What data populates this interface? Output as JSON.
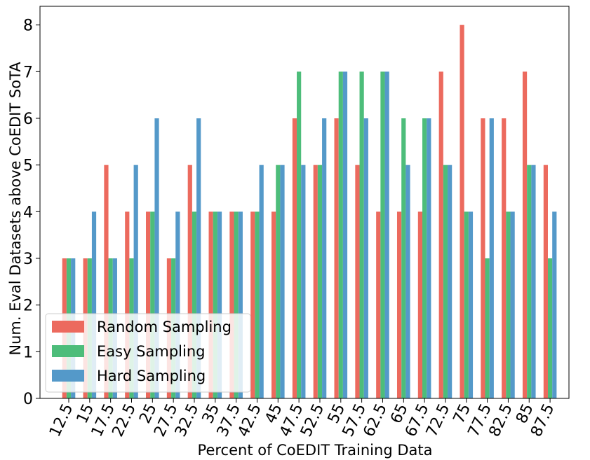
{
  "chart_data": {
    "type": "bar",
    "title": "",
    "xlabel": "Percent of CoEDIT Training Data",
    "ylabel": "Num. Eval Datasets above CoEDIT SoTA",
    "ylim": [
      0,
      8.4
    ],
    "yticks": [
      "0",
      "1",
      "2",
      "3",
      "4",
      "5",
      "6",
      "7",
      "8"
    ],
    "categories": [
      "12.5",
      "15",
      "17.5",
      "22.5",
      "25",
      "27.5",
      "32.5",
      "35",
      "37.5",
      "42.5",
      "45",
      "47.5",
      "52.5",
      "55",
      "57.5",
      "62.5",
      "65",
      "67.5",
      "72.5",
      "75",
      "77.5",
      "82.5",
      "85",
      "87.5"
    ],
    "series": [
      {
        "name": "Random Sampling",
        "color": "#ec6a5e",
        "values": [
          3,
          3,
          5,
          4,
          4,
          3,
          5,
          4,
          4,
          4,
          4,
          6,
          5,
          6,
          5,
          4,
          4,
          4,
          7,
          8,
          6,
          6,
          7,
          5
        ]
      },
      {
        "name": "Easy Sampling",
        "color": "#4dbd7a",
        "values": [
          3,
          3,
          3,
          3,
          4,
          3,
          4,
          4,
          4,
          4,
          5,
          7,
          5,
          7,
          7,
          7,
          6,
          6,
          5,
          4,
          3,
          4,
          5,
          3
        ]
      },
      {
        "name": "Hard Sampling",
        "color": "#5499c9",
        "values": [
          3,
          4,
          3,
          5,
          6,
          4,
          6,
          4,
          4,
          5,
          5,
          5,
          6,
          7,
          6,
          7,
          5,
          6,
          5,
          4,
          6,
          4,
          5,
          4
        ]
      }
    ],
    "grid": false,
    "legend_position": "lower-left"
  }
}
